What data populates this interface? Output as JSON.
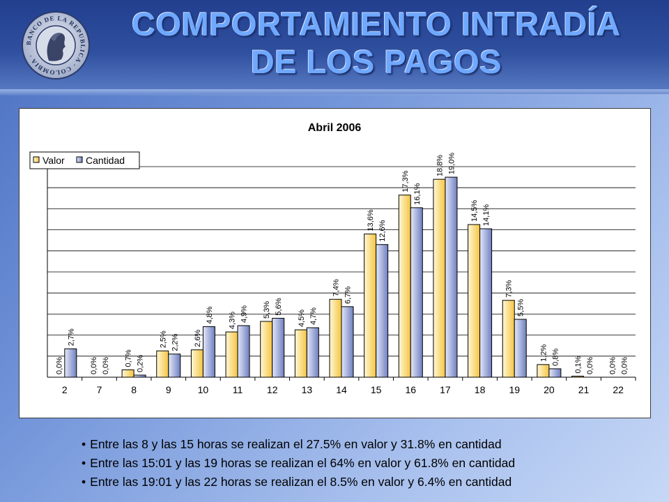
{
  "header": {
    "title_line1": "COMPORTAMIENTO INTRADÍA",
    "title_line2": "DE LOS PAGOS",
    "logo": {
      "icon": "banco-de-la-republica-seal-icon",
      "text": "BANCO DE LA REPUBLICA · COLOMBIA ·"
    }
  },
  "chart_data": {
    "type": "bar",
    "title": "Abril 2006",
    "categories": [
      "2",
      "7",
      "8",
      "9",
      "10",
      "11",
      "12",
      "13",
      "14",
      "15",
      "16",
      "17",
      "18",
      "19",
      "20",
      "21",
      "22"
    ],
    "series": [
      {
        "name": "Valor",
        "color": "#ffd966",
        "values": [
          0.0,
          0.0,
          0.7,
          2.5,
          2.6,
          4.3,
          5.3,
          4.5,
          7.4,
          13.6,
          17.3,
          18.8,
          14.5,
          7.3,
          1.2,
          0.1,
          0.0
        ],
        "labels": [
          "0,0%",
          "0,0%",
          "0,7%",
          "2,5%",
          "2,6%",
          "4,3%",
          "5,3%",
          "4,5%",
          "7,4%",
          "13,6%",
          "17,3%",
          "18,8%",
          "14,5%",
          "7,3%",
          "1,2%",
          "0,1%",
          "0,0%"
        ]
      },
      {
        "name": "Cantidad",
        "color": "#9aa8d8",
        "values": [
          2.7,
          0.0,
          0.2,
          2.2,
          4.8,
          4.9,
          5.6,
          4.7,
          6.7,
          12.6,
          16.1,
          19.0,
          14.1,
          5.5,
          0.8,
          0.0,
          0.0
        ],
        "labels": [
          "2,7%",
          "0,0%",
          "0,2%",
          "2,2%",
          "4,8%",
          "4,9%",
          "5,6%",
          "4,7%",
          "6,7%",
          "12,6%",
          "16,1%",
          "19,0%",
          "14,1%",
          "5,5%",
          "0,8%",
          "0,0%",
          "0,0%"
        ]
      }
    ],
    "ylim": [
      0,
      20
    ],
    "grid": true,
    "legend_position": "top-left"
  },
  "bullets": [
    "Entre las 8 y las 15 horas se realizan el 27.5% en valor y 31.8% en cantidad",
    "Entre las 15:01 y las 19 horas se realizan el 64% en valor y 61.8% en cantidad",
    "Entre las 19:01 y las 22 horas se realizan el 8.5% en valor y 6.4% en cantidad"
  ]
}
